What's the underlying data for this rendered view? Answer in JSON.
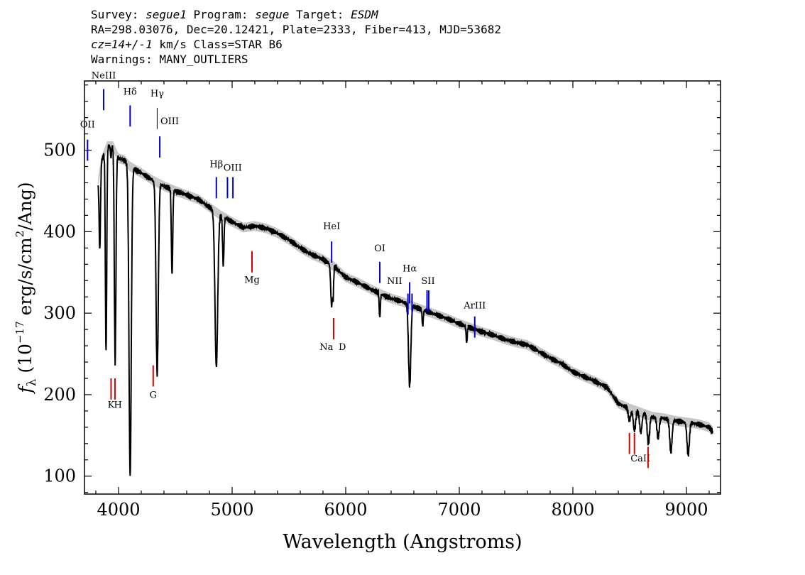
{
  "header": {
    "line1": {
      "survey_label": "Survey: ",
      "survey": "segue1",
      "program_label": " Program: ",
      "program": "segue",
      "target_label": " Target: ",
      "target": "ESDM"
    },
    "line2": "RA=298.03076, Dec=20.12421, Plate=2333, Fiber=413, MJD=53682",
    "line3": {
      "cz": "cz=14+/-1",
      "rest": " km/s Class=STAR B6"
    },
    "line4": "Warnings: MANY_OUTLIERS"
  },
  "chart_data": {
    "type": "line",
    "xlabel": "Wavelength (Angstroms)",
    "ylabel": "f_λ (10^-17 erg/s/cm^2/Ang)",
    "xlim": [
      3700,
      9300
    ],
    "ylim": [
      78,
      585
    ],
    "x_ticks": [
      4000,
      5000,
      6000,
      7000,
      8000,
      9000
    ],
    "y_ticks": [
      100,
      200,
      300,
      400,
      500
    ],
    "colors": {
      "spectrum": "#000000",
      "error_band": "#b4b4b4",
      "emission": "#0000cc",
      "absorption": "#dd0000"
    },
    "continuum": [
      [
        3820,
        460
      ],
      [
        3850,
        487
      ],
      [
        3900,
        505
      ],
      [
        3950,
        505
      ],
      [
        4000,
        490
      ],
      [
        4050,
        488
      ],
      [
        4100,
        480
      ],
      [
        4200,
        472
      ],
      [
        4300,
        463
      ],
      [
        4400,
        456
      ],
      [
        4500,
        450
      ],
      [
        4600,
        445
      ],
      [
        4700,
        440
      ],
      [
        4800,
        430
      ],
      [
        4900,
        420
      ],
      [
        5000,
        412
      ],
      [
        5100,
        405
      ],
      [
        5200,
        407
      ],
      [
        5300,
        404
      ],
      [
        5400,
        398
      ],
      [
        5500,
        390
      ],
      [
        5600,
        380
      ],
      [
        5700,
        372
      ],
      [
        5800,
        366
      ],
      [
        5900,
        357
      ],
      [
        6000,
        344
      ],
      [
        6100,
        338
      ],
      [
        6200,
        331
      ],
      [
        6300,
        324
      ],
      [
        6400,
        318
      ],
      [
        6500,
        314
      ],
      [
        6600,
        308
      ],
      [
        6700,
        303
      ],
      [
        6800,
        298
      ],
      [
        6900,
        293
      ],
      [
        7000,
        287
      ],
      [
        7100,
        282
      ],
      [
        7200,
        277
      ],
      [
        7300,
        273
      ],
      [
        7400,
        268
      ],
      [
        7500,
        264
      ],
      [
        7600,
        261
      ],
      [
        7700,
        253
      ],
      [
        7800,
        245
      ],
      [
        7900,
        238
      ],
      [
        8000,
        228
      ],
      [
        8100,
        222
      ],
      [
        8200,
        216
      ],
      [
        8300,
        209
      ],
      [
        8400,
        189
      ],
      [
        8500,
        183
      ],
      [
        8600,
        178
      ],
      [
        8700,
        173
      ],
      [
        8800,
        171
      ],
      [
        8900,
        168
      ],
      [
        9000,
        166
      ],
      [
        9100,
        164
      ],
      [
        9200,
        160
      ],
      [
        9230,
        155
      ]
    ],
    "absorption_features": [
      [
        3835,
        95,
        6
      ],
      [
        3890,
        250,
        6
      ],
      [
        3933,
        15,
        4
      ],
      [
        3970,
        260,
        7
      ],
      [
        4102,
        380,
        10
      ],
      [
        4340,
        235,
        10
      ],
      [
        4471,
        105,
        6
      ],
      [
        4861,
        190,
        12
      ],
      [
        4922,
        60,
        6
      ],
      [
        5876,
        50,
        8
      ],
      [
        5890,
        30,
        4
      ],
      [
        6300,
        30,
        5
      ],
      [
        6563,
        100,
        10
      ],
      [
        6678,
        20,
        5
      ],
      [
        7065,
        20,
        5
      ],
      [
        8498,
        15,
        10
      ],
      [
        8542,
        25,
        10
      ],
      [
        8598,
        25,
        10
      ],
      [
        8665,
        35,
        10
      ],
      [
        8750,
        25,
        10
      ],
      [
        8863,
        40,
        10
      ],
      [
        9015,
        40,
        10
      ]
    ],
    "emission_lines": [
      {
        "label": "OII",
        "wave": 3727,
        "y0": 487,
        "y1": 513,
        "tx": 3727,
        "ty": 528,
        "color": "#0000cc"
      },
      {
        "label": "NeIII",
        "wave": 3869,
        "y0": 549,
        "y1": 575,
        "tx": 3869,
        "ty": 588,
        "color": "#0000cc"
      },
      {
        "label": "Hδ",
        "wave": 4102,
        "y0": 529,
        "y1": 555,
        "tx": 4102,
        "ty": 568,
        "color": "#0000cc"
      },
      {
        "label": "Hγ",
        "wave": 4340,
        "y0": 526,
        "y1": 552,
        "tx": 4340,
        "ty": 566,
        "color": "#000000"
      },
      {
        "label": "OIII",
        "wave": 4363,
        "y0": 491,
        "y1": 517,
        "tx": 4450,
        "ty": 532,
        "color": "#0000cc"
      },
      {
        "label": "Hβ",
        "wave": 4861,
        "y0": 441,
        "y1": 467,
        "tx": 4861,
        "ty": 479,
        "color": "#0000cc"
      },
      {
        "label": "OIII",
        "wave": 4959,
        "y0": 441,
        "y1": 467,
        "tx": 5005,
        "ty": 475,
        "color": "#0000cc"
      },
      {
        "label": "OIII",
        "wave": 5007,
        "y0": 441,
        "y1": 467,
        "tx": null,
        "ty": null,
        "color": "#0000cc"
      },
      {
        "label": "HeI",
        "wave": 5876,
        "y0": 362,
        "y1": 388,
        "tx": 5876,
        "ty": 403,
        "color": "#0000cc"
      },
      {
        "label": "OI",
        "wave": 6300,
        "y0": 337,
        "y1": 363,
        "tx": 6300,
        "ty": 376,
        "color": "#0000cc"
      },
      {
        "label": "Hα",
        "wave": 6563,
        "y0": 312,
        "y1": 338,
        "tx": 6563,
        "ty": 351,
        "color": "#0000cc"
      },
      {
        "label": "NII",
        "wave": 6548,
        "y0": 298,
        "y1": 324,
        "tx": 6430,
        "ty": 336,
        "color": "#0000cc"
      },
      {
        "label": "NII",
        "wave": 6584,
        "y0": 298,
        "y1": 324,
        "tx": null,
        "ty": null,
        "color": "#0000cc"
      },
      {
        "label": "SII",
        "wave": 6716,
        "y0": 302,
        "y1": 328,
        "tx": 6725,
        "ty": 336,
        "color": "#0000cc"
      },
      {
        "label": "SII",
        "wave": 6731,
        "y0": 302,
        "y1": 328,
        "tx": null,
        "ty": null,
        "color": "#0000cc"
      },
      {
        "label": "ArIII",
        "wave": 7136,
        "y0": 270,
        "y1": 296,
        "tx": 7136,
        "ty": 306,
        "color": "#0000cc"
      }
    ],
    "absorption_lines": [
      {
        "label": "K",
        "wave": 3934,
        "y0": 194,
        "y1": 220,
        "tx": 3934,
        "ty": 184,
        "color": "#dd0000"
      },
      {
        "label": "H",
        "wave": 3969,
        "y0": 194,
        "y1": 220,
        "tx": 3995,
        "ty": 184,
        "color": "#dd0000"
      },
      {
        "label": "G",
        "wave": 4305,
        "y0": 210,
        "y1": 236,
        "tx": 4305,
        "ty": 196,
        "color": "#dd0000"
      },
      {
        "label": "Mg",
        "wave": 5175,
        "y0": 350,
        "y1": 376,
        "tx": 5175,
        "ty": 337,
        "color": "#dd0000"
      },
      {
        "label": "Na",
        "wave": 5894,
        "y0": 268,
        "y1": 294,
        "tx": 5830,
        "ty": 255,
        "color": "#dd0000"
      },
      {
        "label": "D",
        "wave": 5894,
        "y0": 268,
        "y1": 294,
        "tx": 5970,
        "ty": 255,
        "color": "#dd0000"
      },
      {
        "label": "CaII",
        "wave": 8498,
        "y0": 127,
        "y1": 153,
        "tx": 8595,
        "ty": 118,
        "color": "#dd0000"
      },
      {
        "label": "CaII",
        "wave": 8542,
        "y0": 127,
        "y1": 153,
        "tx": null,
        "ty": null,
        "color": "#dd0000"
      },
      {
        "label": "CaII",
        "wave": 8662,
        "y0": 110,
        "y1": 136,
        "tx": null,
        "ty": null,
        "color": "#dd0000"
      }
    ]
  }
}
